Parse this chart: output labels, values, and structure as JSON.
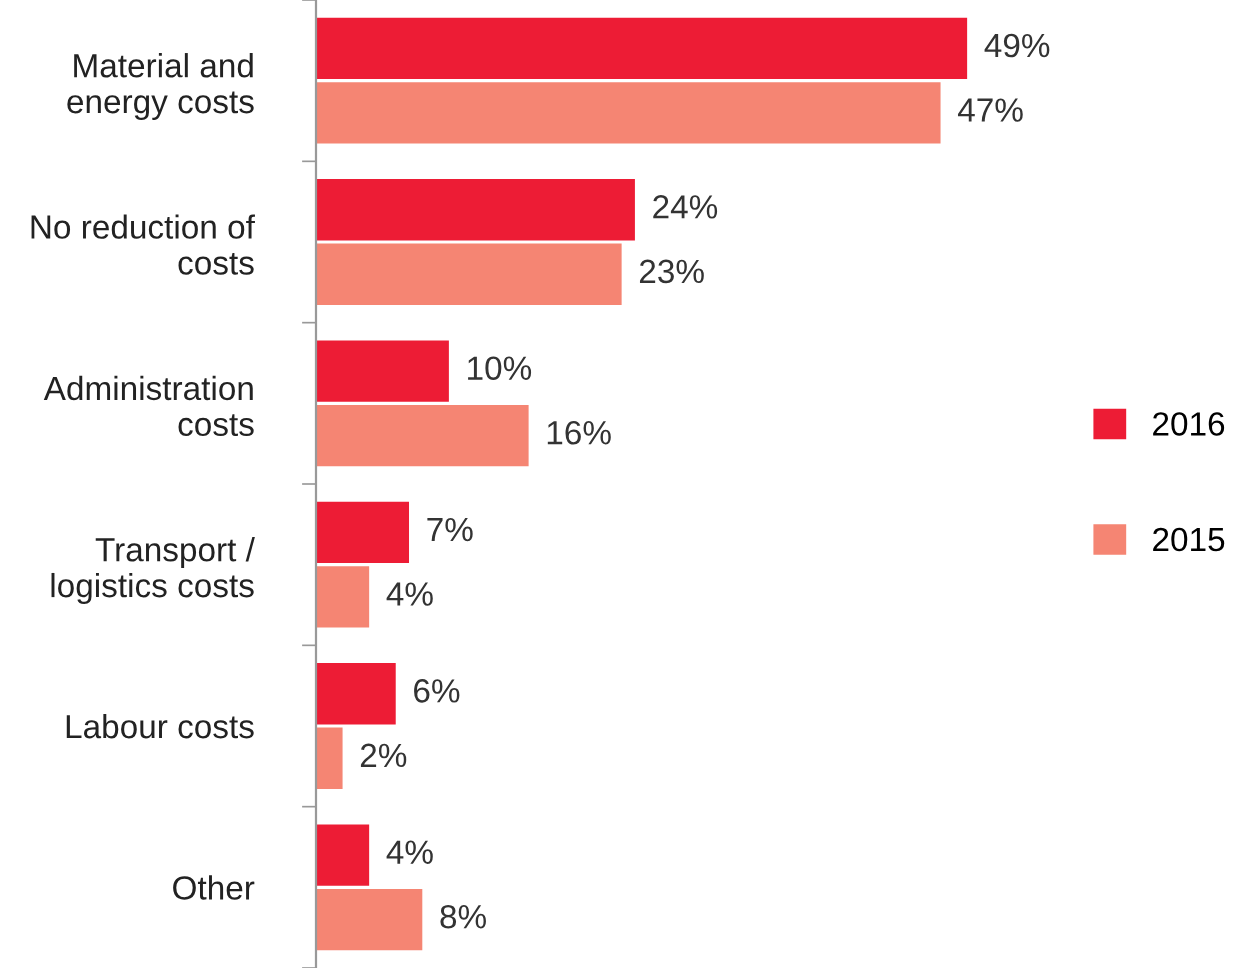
{
  "chart_data": {
    "type": "bar",
    "orientation": "horizontal",
    "categories": [
      "Material and\nenergy costs",
      "No reduction of\ncosts",
      "Administration\ncosts",
      "Transport /\nlogistics costs",
      "Labour costs",
      "Other"
    ],
    "series": [
      {
        "name": "2016",
        "color": "#ed1c35",
        "values": [
          49,
          24,
          10,
          7,
          6,
          4
        ],
        "value_labels": [
          "49%",
          "24%",
          "10%",
          "7%",
          "6%",
          "4%"
        ]
      },
      {
        "name": "2015",
        "color": "#f58573",
        "values": [
          47,
          23,
          16,
          4,
          2,
          8
        ],
        "value_labels": [
          "47%",
          "23%",
          "16%",
          "4%",
          "2%",
          "8%"
        ]
      }
    ],
    "legend": "right",
    "grid": false
  }
}
